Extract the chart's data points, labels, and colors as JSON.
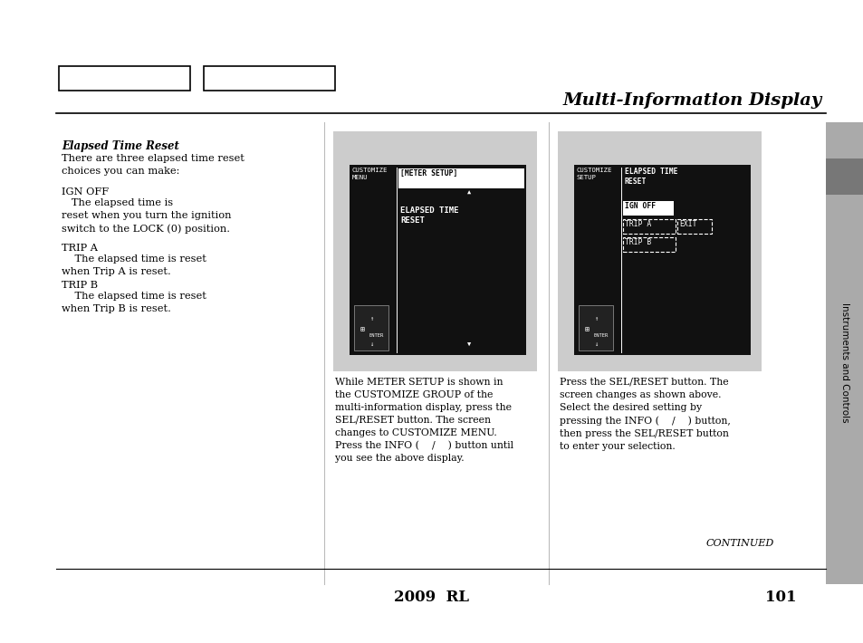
{
  "page_bg": "#ffffff",
  "title": "Multi-Information Display",
  "page_number": "101",
  "model_year": "2009  RL",
  "continued": "CONTINUED",
  "section_label": "Instruments and Controls",
  "heading": "Elapsed Time Reset",
  "para1": "There are three elapsed time reset\nchoices you can make:",
  "caption1_line1": "While METER SETUP is shown in",
  "caption1_line2": "the CUSTOMIZE GROUP of the",
  "caption1_line3": "multi-information display, press the",
  "caption1_line4": "SEL/RESET button. The screen",
  "caption1_line5": "changes to CUSTOMIZE MENU.",
  "caption1_line6": "Press the INFO (    /    ) button until",
  "caption1_line7": "you see the above display.",
  "caption2_line1": "Press the SEL/RESET button. The",
  "caption2_line2": "screen changes as shown above.",
  "caption2_line3": "Select the desired setting by",
  "caption2_line4": "pressing the INFO (    /    ) button,",
  "caption2_line5": "then press the SEL/RESET button",
  "caption2_line6": "to enter your selection.",
  "gray_panel": "#cccccc",
  "screen_bg": "#111111",
  "white": "#ffffff",
  "sidebar_light": "#aaaaaa",
  "sidebar_dark": "#777777"
}
